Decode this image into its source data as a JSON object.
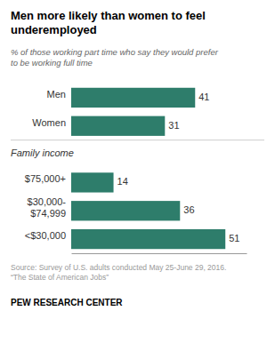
{
  "chart_data": {
    "type": "bar",
    "orientation": "horizontal",
    "title": "Men more likely than women to feel\nunderemployed",
    "subtitle": "% of those working part time who say they would prefer\nto be working full time",
    "categories": [
      "Men",
      "Women",
      "$75,000+",
      "$30,000-\n$74,999",
      "<$30,000"
    ],
    "values": [
      41,
      31,
      14,
      36,
      51
    ],
    "color": "#2e7d6b",
    "xlim": [
      0,
      58
    ],
    "data_labels": true,
    "tick_labels": "y",
    "annotations": [
      {
        "text": "Family income",
        "category": "$75,000+"
      }
    ],
    "source": "Source: Survey of U.S. adults conducted May 25-June 29, 2016.\n“The State of American Jobs”",
    "footer": "PEW RESEARCH CENTER"
  }
}
